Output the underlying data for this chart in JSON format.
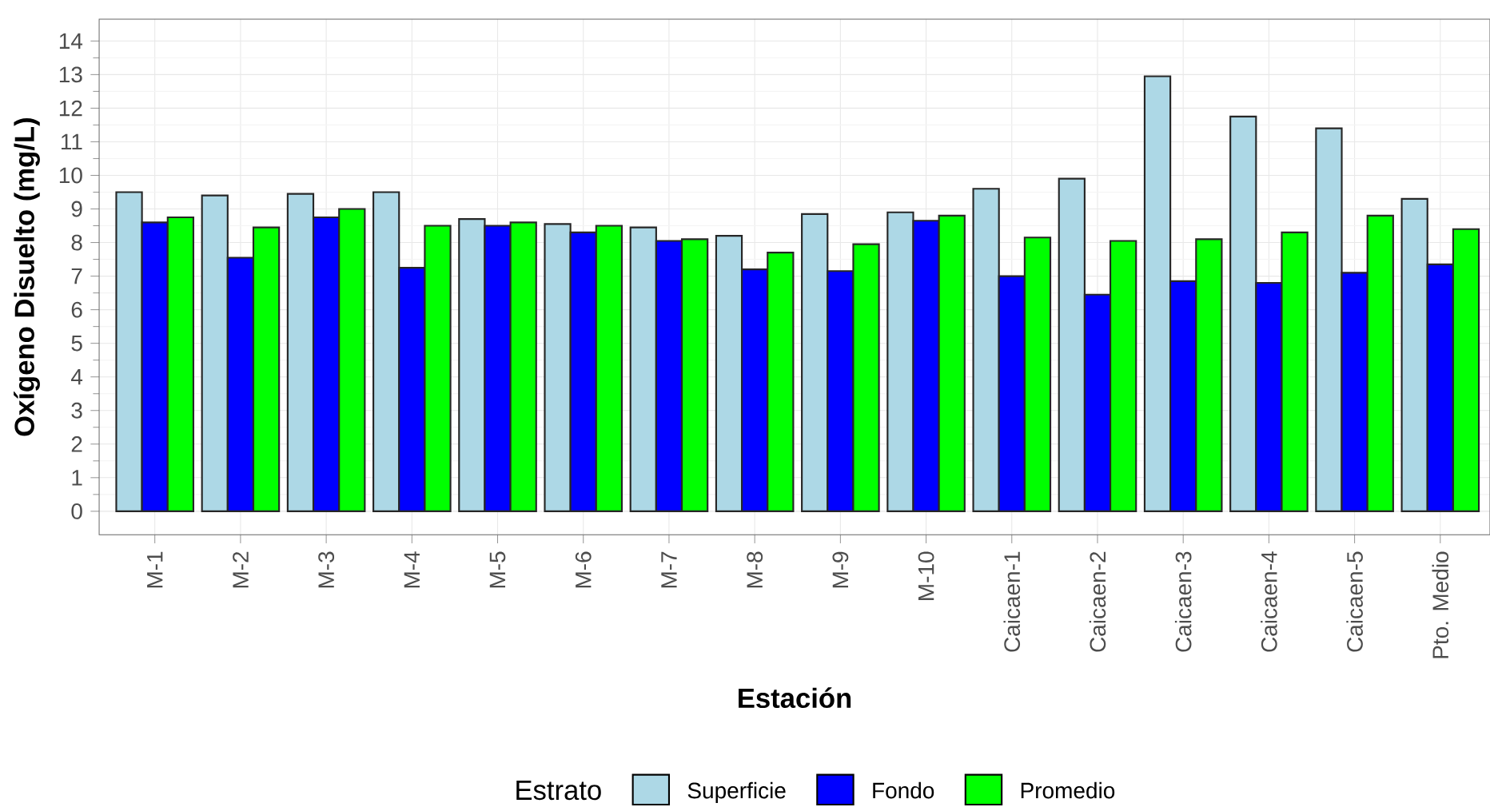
{
  "chart_data": {
    "type": "bar",
    "xlabel": "Estación",
    "ylabel": "Oxígeno Disuelto (mg/L)",
    "legend_title": "Estrato",
    "categories": [
      "M-1",
      "M-2",
      "M-3",
      "M-4",
      "M-5",
      "M-6",
      "M-7",
      "M-8",
      "M-9",
      "M-10",
      "Caicaen-1",
      "Caicaen-2",
      "Caicaen-3",
      "Caicaen-4",
      "Caicaen-5",
      "Pto. Medio"
    ],
    "series": [
      {
        "name": "Superficie",
        "color": "#add8e6",
        "values": [
          9.5,
          9.4,
          9.45,
          9.5,
          8.7,
          8.55,
          8.45,
          8.2,
          8.85,
          8.9,
          9.6,
          9.9,
          12.95,
          11.75,
          11.4,
          9.3
        ]
      },
      {
        "name": "Fondo",
        "color": "#0000ff",
        "values": [
          8.6,
          7.55,
          8.75,
          7.25,
          8.5,
          8.3,
          8.05,
          7.2,
          7.15,
          8.65,
          7.0,
          6.45,
          6.85,
          6.8,
          7.1,
          7.35
        ]
      },
      {
        "name": "Promedio",
        "color": "#00ff00",
        "values": [
          8.75,
          8.45,
          9.0,
          8.5,
          8.6,
          8.5,
          8.1,
          7.7,
          7.95,
          8.8,
          8.15,
          8.05,
          8.1,
          8.3,
          8.8,
          8.4
        ]
      }
    ],
    "ylim": [
      -0.7,
      14.65
    ],
    "yticks": [
      0,
      1,
      2,
      3,
      4,
      5,
      6,
      7,
      8,
      9,
      10,
      11,
      12,
      13,
      14
    ],
    "grid": true,
    "legend": "bottom"
  }
}
